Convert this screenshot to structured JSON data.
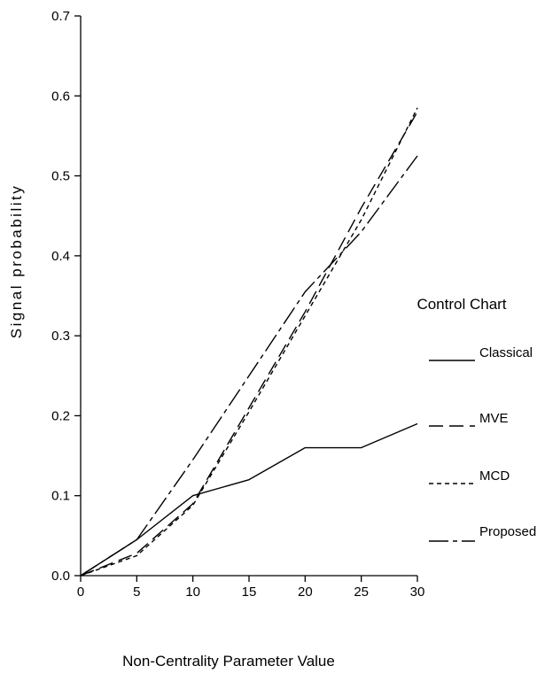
{
  "chart_data": {
    "type": "line",
    "title": "",
    "xlabel": "Non-Centrality Parameter Value",
    "ylabel": "Signal probability",
    "xlim": [
      0,
      30
    ],
    "ylim": [
      0,
      0.7
    ],
    "x_ticks": [
      "0",
      "5",
      "10",
      "15",
      "20",
      "25",
      "30"
    ],
    "y_ticks": [
      "0.0",
      "0.1",
      "0.2",
      "0.3",
      "0.4",
      "0.5",
      "0.6",
      "0.7"
    ],
    "grid": false,
    "legend": {
      "title": "Control Chart",
      "placement": "right"
    },
    "x": [
      0,
      5,
      10,
      15,
      20,
      25,
      30
    ],
    "series": [
      {
        "name": "Classical",
        "style": "solid",
        "values": [
          0.0,
          0.045,
          0.1,
          0.12,
          0.16,
          0.16,
          0.19
        ]
      },
      {
        "name": "MVE",
        "style": "longdash",
        "values": [
          0.0,
          0.028,
          0.09,
          0.21,
          0.33,
          0.46,
          0.58
        ]
      },
      {
        "name": "MCD",
        "style": "shortdash",
        "values": [
          0.0,
          0.025,
          0.088,
          0.205,
          0.325,
          0.445,
          0.585
        ]
      },
      {
        "name": "Proposed",
        "style": "dashdot",
        "values": [
          0.0,
          0.045,
          0.145,
          0.25,
          0.355,
          0.43,
          0.525
        ]
      }
    ],
    "colors": {
      "line": "#000000",
      "background": "#ffffff"
    }
  }
}
